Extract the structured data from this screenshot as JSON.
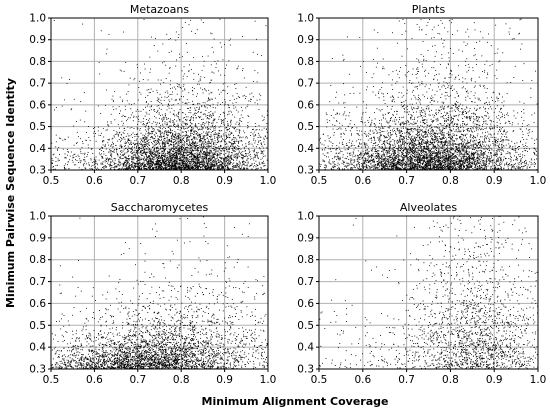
{
  "figure": {
    "xlabel": "Minimum Alignment Coverage",
    "ylabel": "Minimum Pairwise Sequence Identity"
  },
  "chart_data": [
    {
      "type": "scatter",
      "title": "Metazoans",
      "xlim": [
        0.5,
        1.0
      ],
      "ylim": [
        0.3,
        1.0
      ],
      "xticks": [
        "0.5",
        "0.6",
        "0.7",
        "0.8",
        "0.9",
        "1.0"
      ],
      "yticks": [
        "0.3",
        "0.4",
        "0.5",
        "0.6",
        "0.7",
        "0.8",
        "0.9",
        "1.0"
      ],
      "grid": true,
      "density_model": {
        "x_mean": 0.8,
        "x_sd": 0.09,
        "y_floor": 0.3,
        "y_decay": 0.09,
        "y_growth_with_x": 0.12,
        "n_points": 4500
      }
    },
    {
      "type": "scatter",
      "title": "Plants",
      "xlim": [
        0.5,
        1.0
      ],
      "ylim": [
        0.3,
        1.0
      ],
      "xticks": [
        "0.5",
        "0.6",
        "0.7",
        "0.8",
        "0.9",
        "1.0"
      ],
      "yticks": [
        "0.3",
        "0.4",
        "0.5",
        "0.6",
        "0.7",
        "0.8",
        "0.9",
        "1.0"
      ],
      "grid": true,
      "density_model": {
        "x_mean": 0.76,
        "x_sd": 0.1,
        "y_floor": 0.3,
        "y_decay": 0.1,
        "y_growth_with_x": 0.14,
        "n_points": 5000
      }
    },
    {
      "type": "scatter",
      "title": "Saccharomycetes",
      "xlim": [
        0.5,
        1.0
      ],
      "ylim": [
        0.3,
        1.0
      ],
      "xticks": [
        "0.5",
        "0.6",
        "0.7",
        "0.8",
        "0.9",
        "1.0"
      ],
      "yticks": [
        "0.3",
        "0.4",
        "0.5",
        "0.6",
        "0.7",
        "0.8",
        "0.9",
        "1.0"
      ],
      "grid": true,
      "density_model": {
        "x_mean": 0.74,
        "x_sd": 0.11,
        "y_floor": 0.3,
        "y_decay": 0.07,
        "y_growth_with_x": 0.18,
        "n_points": 3500
      }
    },
    {
      "type": "scatter",
      "title": "Alveolates",
      "xlim": [
        0.5,
        1.0
      ],
      "ylim": [
        0.3,
        1.0
      ],
      "xticks": [
        "0.5",
        "0.6",
        "0.7",
        "0.8",
        "0.9",
        "1.0"
      ],
      "yticks": [
        "0.3",
        "0.4",
        "0.5",
        "0.6",
        "0.7",
        "0.8",
        "0.9",
        "1.0"
      ],
      "grid": true,
      "density_model": {
        "x_mean": 0.86,
        "x_sd": 0.08,
        "y_floor": 0.3,
        "y_decay": 0.16,
        "y_growth_with_x": 0.25,
        "n_points": 2000
      }
    }
  ]
}
